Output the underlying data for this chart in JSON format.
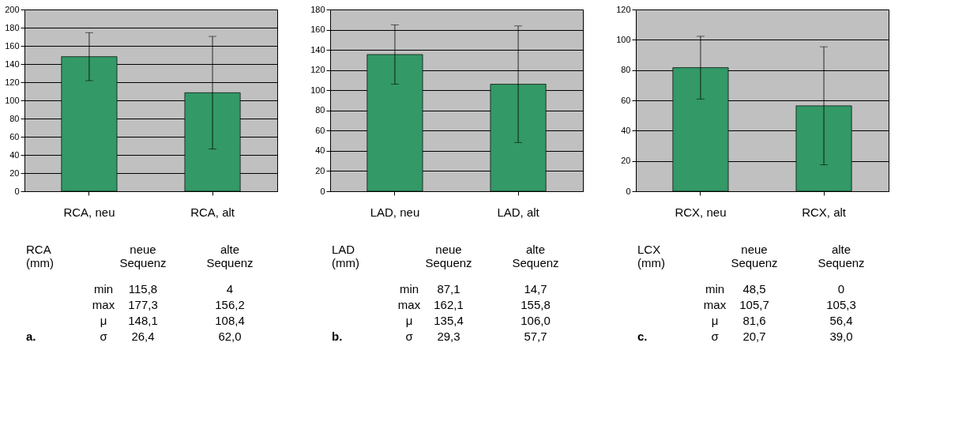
{
  "chart_data": [
    {
      "type": "bar",
      "categories": [
        "RCA, neu",
        "RCA, alt"
      ],
      "values": [
        148.1,
        108.4
      ],
      "errors": [
        26.4,
        62.0
      ],
      "color": "#339966",
      "ylim": [
        0,
        200
      ],
      "yticks": [
        0,
        20,
        40,
        60,
        80,
        100,
        120,
        140,
        160,
        180,
        200
      ],
      "grid": "y",
      "annotations": [
        "RCA\n(mm)",
        "neue\nSequenz",
        "alte\nSequenz",
        "min",
        "115,8",
        "4",
        "max",
        "177,3",
        "156,2",
        "μ",
        "148,1",
        "108,4",
        "σ",
        "26,4",
        "62,0",
        "a."
      ]
    },
    {
      "type": "bar",
      "categories": [
        "LAD, neu",
        "LAD, alt"
      ],
      "values": [
        135.4,
        106.0
      ],
      "errors": [
        29.3,
        57.7
      ],
      "color": "#339966",
      "ylim": [
        0,
        180
      ],
      "yticks": [
        0,
        20,
        40,
        60,
        80,
        100,
        120,
        140,
        160,
        180
      ],
      "grid": "y",
      "annotations": [
        "LAD\n(mm)",
        "neue\nSequenz",
        "alte\nSequenz",
        "min",
        "87,1",
        "14,7",
        "max",
        "162,1",
        "155,8",
        "μ",
        "135,4",
        "106,0",
        "σ",
        "29,3",
        "57,7",
        "b."
      ]
    },
    {
      "type": "bar",
      "categories": [
        "RCX, neu",
        "RCX, alt"
      ],
      "values": [
        81.6,
        56.4
      ],
      "errors": [
        20.7,
        39.0
      ],
      "color": "#339966",
      "ylim": [
        0,
        120
      ],
      "yticks": [
        0,
        20,
        40,
        60,
        80,
        100,
        120
      ],
      "grid": "y",
      "annotations": [
        "LCX\n(mm)",
        "neue\nSequenz",
        "alte\nSequenz",
        "min",
        "48,5",
        "0",
        "max",
        "105,7",
        "105,3",
        "μ",
        "81,6",
        "56,4",
        "σ",
        "20,7",
        "39,0",
        "c."
      ]
    }
  ]
}
